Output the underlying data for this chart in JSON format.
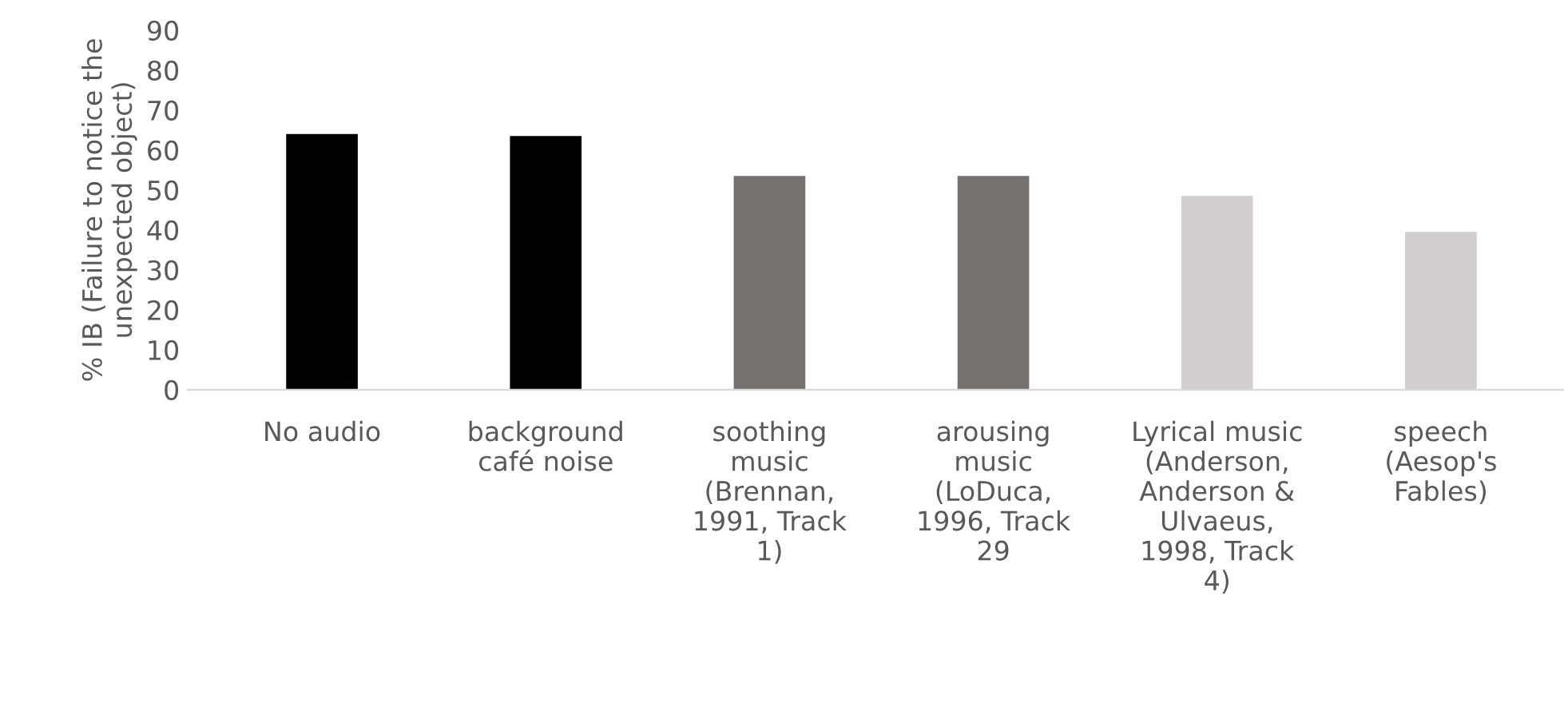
{
  "chart_data": {
    "type": "bar",
    "ylabel": "% IB (Failure to notice the unexpected object)",
    "categories": [
      "No audio",
      "background café noise",
      "soothing music (Brennan, 1991, Track 1)",
      "arousing music (LoDuca, 1996, Track 29",
      "Lyrical music (Anderson, Anderson & Ulvaeus, 1998, Track 4)",
      "speech (Aesop's Fables)"
    ],
    "values": [
      64,
      63.5,
      53.5,
      53.5,
      48.5,
      39.5
    ],
    "colors": [
      "#000000",
      "#000000",
      "#757171",
      "#757171",
      "#d0cece",
      "#d0cece"
    ],
    "ylim": [
      0,
      90
    ],
    "yticks": [
      0,
      10,
      20,
      30,
      40,
      50,
      60,
      70,
      80,
      90
    ],
    "grid": false,
    "legend": false
  }
}
